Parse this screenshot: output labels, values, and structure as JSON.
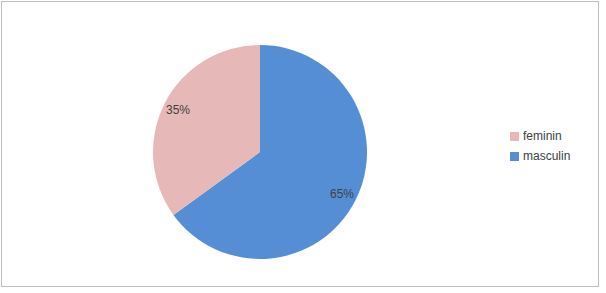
{
  "chart_data": {
    "type": "pie",
    "categories": [
      "masculin",
      "feminin"
    ],
    "values": [
      65,
      35
    ],
    "value_labels": [
      "65%",
      "35%"
    ],
    "colors": [
      "#558ed5",
      "#e6b9b8"
    ],
    "data_labels": true,
    "legend": "right"
  }
}
